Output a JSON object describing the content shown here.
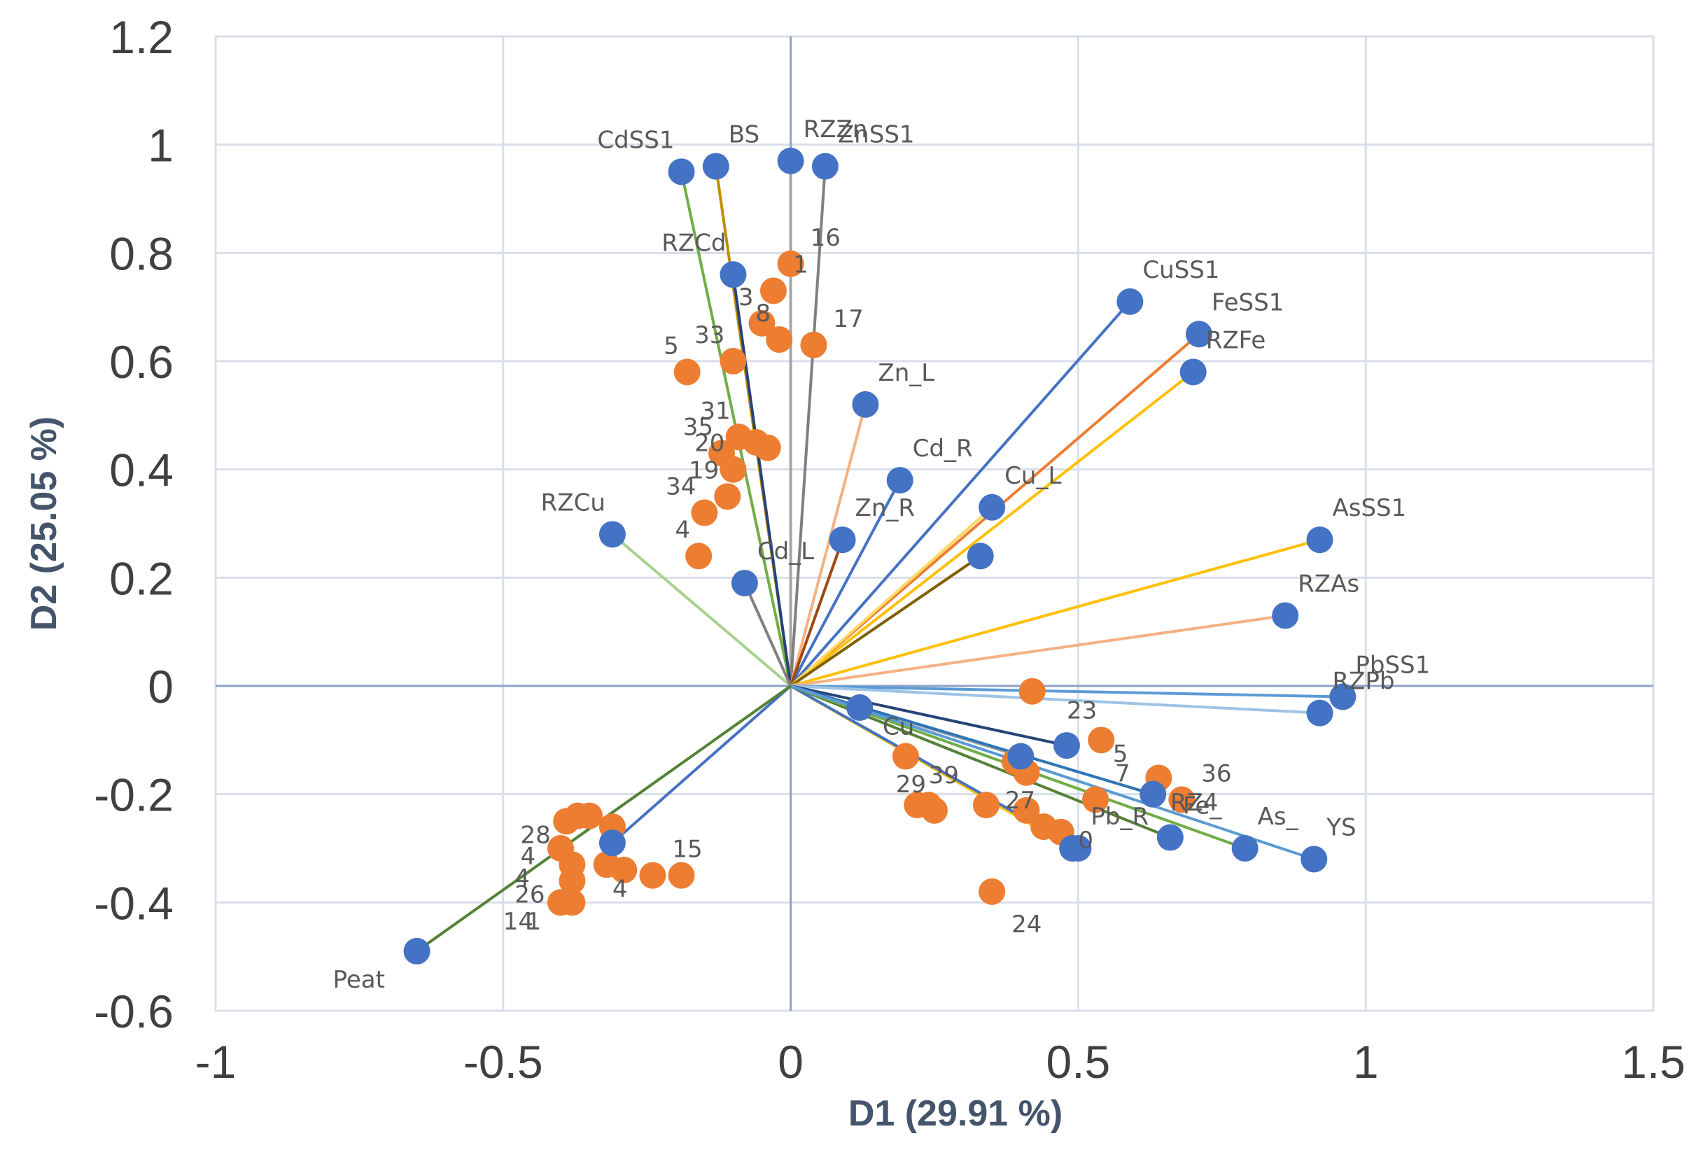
{
  "chart_data": {
    "type": "scatter",
    "title": "",
    "xlabel": "D1 (29.91 %)",
    "ylabel": "D2 (25.05 %)",
    "xlim": [
      -1,
      1.5
    ],
    "ylim": [
      -0.6,
      1.2
    ],
    "xticks": [
      -1,
      -0.5,
      0,
      0.5,
      1,
      1.5
    ],
    "yticks": [
      -0.6,
      -0.4,
      -0.2,
      0,
      0.2,
      0.4,
      0.6,
      0.8,
      1,
      1.2
    ],
    "xtick_labels": [
      "-1",
      "-0.5",
      "0",
      "0.5",
      "1",
      "1.5"
    ],
    "ytick_labels": [
      "-0.6",
      "-0.4",
      "-0.2",
      "0",
      "0.2",
      "0.4",
      "0.6",
      "0.8",
      "1",
      "1.2"
    ],
    "grid": true,
    "colors": {
      "variables": "#4472c4",
      "observations": "#ed7d31",
      "grid": "#d9dfe8",
      "zero_axes": "#8ea2c6",
      "frame": "#d9dfe8"
    },
    "variables": [
      {
        "label": "CdSS1",
        "x": -0.19,
        "y": 0.95,
        "color": "#70ad47"
      },
      {
        "label": "BS",
        "x": -0.13,
        "y": 0.96,
        "color": "#c09000"
      },
      {
        "label": "RZZn",
        "x": 0.0,
        "y": 0.97,
        "color": "#a5a5a5"
      },
      {
        "label": "ZnSS1",
        "x": 0.06,
        "y": 0.96,
        "color": "#7f7f7f"
      },
      {
        "label": "RZCd",
        "x": -0.1,
        "y": 0.76,
        "color": "#264478"
      },
      {
        "label": "CuSS1",
        "x": 0.59,
        "y": 0.71,
        "color": "#4472c4"
      },
      {
        "label": "FeSS1",
        "x": 0.71,
        "y": 0.65,
        "color": "#ed7d31"
      },
      {
        "label": "RZFe",
        "x": 0.7,
        "y": 0.58,
        "color": "#ffc000"
      },
      {
        "label": "Zn_L",
        "x": 0.13,
        "y": 0.52,
        "color": "#f4b183"
      },
      {
        "label": "Cd_R",
        "x": 0.19,
        "y": 0.38,
        "color": "#4472c4"
      },
      {
        "label": "Zn_R",
        "x": 0.09,
        "y": 0.27,
        "color": "#9e480e"
      },
      {
        "label": "Cu_L",
        "x": 0.35,
        "y": 0.33,
        "color": "#ffd966"
      },
      {
        "label": "",
        "x": 0.33,
        "y": 0.24,
        "color": "#7f6000"
      },
      {
        "label": "AsSS1",
        "x": 0.92,
        "y": 0.27,
        "color": "#ffc000"
      },
      {
        "label": "RZAs",
        "x": 0.86,
        "y": 0.13,
        "color": "#f4b183"
      },
      {
        "label": "RZCu",
        "x": -0.31,
        "y": 0.28,
        "color": "#a9d18e"
      },
      {
        "label": "Cd_L",
        "x": -0.08,
        "y": 0.19,
        "color": "#7f7f7f"
      },
      {
        "label": "PbSS1",
        "x": 0.96,
        "y": -0.02,
        "color": "#5b9bd5"
      },
      {
        "label": "RZPb",
        "x": 0.92,
        "y": -0.05,
        "color": "#9dc3e6"
      },
      {
        "label": "",
        "x": 0.12,
        "y": -0.04,
        "color": "#4472c4"
      },
      {
        "label": "",
        "x": 0.48,
        "y": -0.11,
        "color": "#264478"
      },
      {
        "label": "",
        "x": 0.4,
        "y": -0.13,
        "color": "#a5a5a5"
      },
      {
        "label": "",
        "x": 0.63,
        "y": -0.2,
        "color": "#2e75b6"
      },
      {
        "label": "",
        "x": 0.49,
        "y": -0.3,
        "color": "#ffc000"
      },
      {
        "label": "Pb_R",
        "x": 0.5,
        "y": -0.3,
        "color": "#4472c4"
      },
      {
        "label": "Fe_",
        "x": 0.66,
        "y": -0.28,
        "color": "#548235"
      },
      {
        "label": "As_",
        "x": 0.79,
        "y": -0.3,
        "color": "#70ad47"
      },
      {
        "label": "YS",
        "x": 0.91,
        "y": -0.32,
        "color": "#5b9bd5"
      },
      {
        "label": "",
        "x": -0.31,
        "y": -0.29,
        "color": "#4472c4"
      },
      {
        "label": "Peat",
        "x": -0.65,
        "y": -0.49,
        "color": "#548235"
      }
    ],
    "observations": [
      {
        "label": "16",
        "x": 0.0,
        "y": 0.78
      },
      {
        "label": "1",
        "x": -0.03,
        "y": 0.73
      },
      {
        "label": "3",
        "x": -0.05,
        "y": 0.67
      },
      {
        "label": "8",
        "x": -0.02,
        "y": 0.64
      },
      {
        "label": "17",
        "x": 0.04,
        "y": 0.63
      },
      {
        "label": "33",
        "x": -0.1,
        "y": 0.6
      },
      {
        "label": "5",
        "x": -0.18,
        "y": 0.58
      },
      {
        "label": "31",
        "x": -0.09,
        "y": 0.46
      },
      {
        "label": "",
        "x": -0.06,
        "y": 0.45
      },
      {
        "label": "",
        "x": -0.04,
        "y": 0.44
      },
      {
        "label": "35",
        "x": -0.12,
        "y": 0.43
      },
      {
        "label": "20",
        "x": -0.1,
        "y": 0.4
      },
      {
        "label": "19",
        "x": -0.11,
        "y": 0.35
      },
      {
        "label": "34",
        "x": -0.15,
        "y": 0.32
      },
      {
        "label": "4",
        "x": -0.16,
        "y": 0.24
      },
      {
        "label": "",
        "x": 0.42,
        "y": -0.01
      },
      {
        "label": "",
        "x": 0.54,
        "y": -0.1
      },
      {
        "label": "",
        "x": 0.2,
        "y": -0.13
      },
      {
        "label": "",
        "x": 0.39,
        "y": -0.14
      },
      {
        "label": "",
        "x": 0.41,
        "y": -0.16
      },
      {
        "label": "",
        "x": 0.64,
        "y": -0.17
      },
      {
        "label": "36",
        "x": 0.68,
        "y": -0.21
      },
      {
        "label": "7",
        "x": 0.53,
        "y": -0.21
      },
      {
        "label": "",
        "x": 0.22,
        "y": -0.22
      },
      {
        "label": "",
        "x": 0.24,
        "y": -0.22
      },
      {
        "label": "",
        "x": 0.34,
        "y": -0.22
      },
      {
        "label": "",
        "x": 0.41,
        "y": -0.23
      },
      {
        "label": "29",
        "x": 0.25,
        "y": -0.23
      },
      {
        "label": "27",
        "x": 0.44,
        "y": -0.26
      },
      {
        "label": "",
        "x": 0.47,
        "y": -0.27
      },
      {
        "label": "24",
        "x": 0.35,
        "y": -0.38
      },
      {
        "label": "",
        "x": -0.37,
        "y": -0.24
      },
      {
        "label": "",
        "x": -0.35,
        "y": -0.24
      },
      {
        "label": "",
        "x": -0.31,
        "y": -0.26
      },
      {
        "label": "",
        "x": -0.39,
        "y": -0.25
      },
      {
        "label": "",
        "x": -0.4,
        "y": -0.3
      },
      {
        "label": "",
        "x": -0.38,
        "y": -0.33
      },
      {
        "label": "",
        "x": -0.32,
        "y": -0.33
      },
      {
        "label": "",
        "x": -0.29,
        "y": -0.34
      },
      {
        "label": "15",
        "x": -0.24,
        "y": -0.35
      },
      {
        "label": "",
        "x": -0.19,
        "y": -0.35
      },
      {
        "label": "",
        "x": -0.38,
        "y": -0.36
      },
      {
        "label": "",
        "x": -0.4,
        "y": -0.4
      },
      {
        "label": "",
        "x": -0.38,
        "y": -0.4
      }
    ],
    "extra_labels": [
      {
        "text": "23",
        "x": 0.48,
        "y": -0.06
      },
      {
        "text": "Cu",
        "x": 0.16,
        "y": -0.09
      },
      {
        "text": "5",
        "x": 0.56,
        "y": -0.14
      },
      {
        "text": "39",
        "x": 0.24,
        "y": -0.18
      },
      {
        "text": "RZ4",
        "x": 0.66,
        "y": -0.23
      },
      {
        "text": "0",
        "x": 0.5,
        "y": -0.3
      },
      {
        "text": "28",
        "x": -0.47,
        "y": -0.29
      },
      {
        "text": "4",
        "x": -0.47,
        "y": -0.33
      },
      {
        "text": "4",
        "x": -0.48,
        "y": -0.37
      },
      {
        "text": "4",
        "x": -0.31,
        "y": -0.39
      },
      {
        "text": "26",
        "x": -0.48,
        "y": -0.4
      },
      {
        "text": "14",
        "x": -0.5,
        "y": -0.45
      },
      {
        "text": "1",
        "x": -0.46,
        "y": -0.45
      }
    ]
  }
}
